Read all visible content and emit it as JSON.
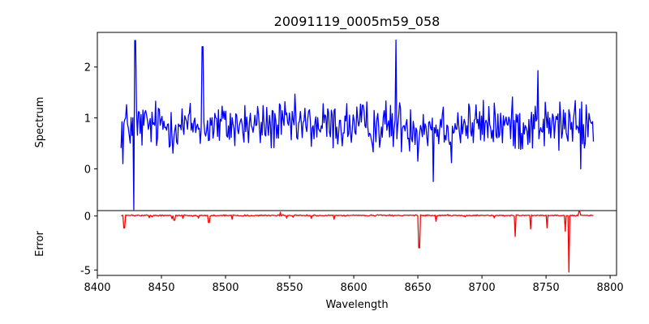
{
  "chart_data": [
    {
      "type": "line",
      "panel": "top",
      "title": "20091119_0005m59_058",
      "xlabel": "",
      "ylabel": "Spectrum",
      "xlim": [
        8400,
        8805
      ],
      "ylim": [
        -0.82,
        2.68
      ],
      "yticks": [
        0,
        1,
        2
      ],
      "color": "#0000ff",
      "series": [
        {
          "name": "Spectrum",
          "x_start": 8418.5,
          "x_end": 8787,
          "baseline": 0.85,
          "noise": 0.3,
          "features": [
            {
              "x": 8420,
              "y": 0.1
            },
            {
              "x": 8428.5,
              "y": -0.8
            },
            {
              "x": 8429.5,
              "y": 2.52
            },
            {
              "x": 8482,
              "y": 2.4
            },
            {
              "x": 8633,
              "y": 2.53
            },
            {
              "x": 8650,
              "y": 0.15
            },
            {
              "x": 8662,
              "y": -0.25
            },
            {
              "x": 8676,
              "y": 0.12
            },
            {
              "x": 8743.5,
              "y": 1.93
            },
            {
              "x": 8777,
              "y": 0.0
            }
          ]
        }
      ]
    },
    {
      "type": "line",
      "panel": "bottom",
      "xlabel": "Wavelength",
      "ylabel": "Error",
      "xlim": [
        8400,
        8805
      ],
      "ylim": [
        -5.5,
        0.5
      ],
      "xticks": [
        8400,
        8450,
        8500,
        8550,
        8600,
        8650,
        8700,
        8750,
        8800
      ],
      "yticks": [
        0,
        -5
      ],
      "color": "#ff0000",
      "series": [
        {
          "name": "Error",
          "x_start": 8418.5,
          "x_end": 8787,
          "baseline": 0.05,
          "noise": 0.04,
          "features": [
            {
              "x": 8421,
              "y": -1.1
            },
            {
              "x": 8460,
              "y": -0.4
            },
            {
              "x": 8487,
              "y": -0.6
            },
            {
              "x": 8505,
              "y": -0.3
            },
            {
              "x": 8543,
              "y": 0.35
            },
            {
              "x": 8651,
              "y": -2.95
            },
            {
              "x": 8664,
              "y": -0.5
            },
            {
              "x": 8726,
              "y": -1.9
            },
            {
              "x": 8738,
              "y": -1.2
            },
            {
              "x": 8751,
              "y": -1.1
            },
            {
              "x": 8765,
              "y": -1.4
            },
            {
              "x": 8768,
              "y": -5.2
            },
            {
              "x": 8776,
              "y": 0.4
            }
          ]
        }
      ]
    }
  ]
}
